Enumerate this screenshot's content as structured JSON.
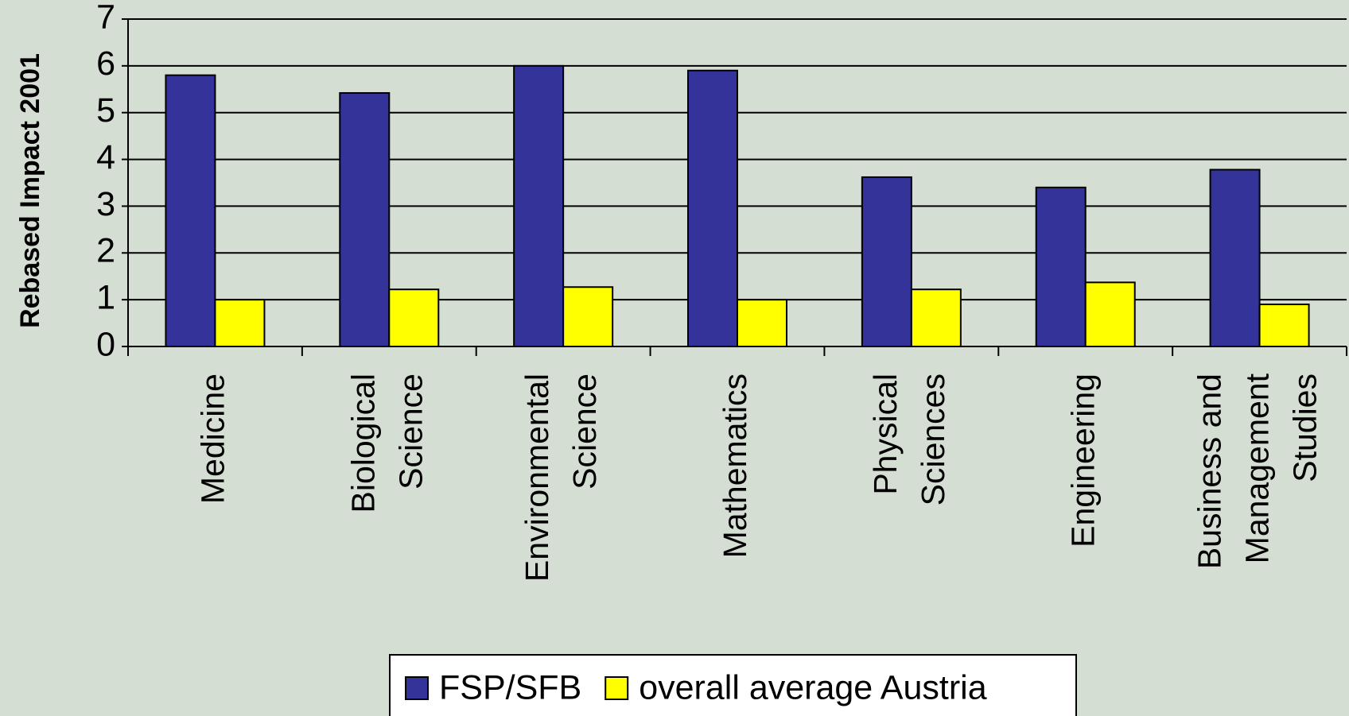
{
  "chart_data": {
    "type": "bar",
    "y_label": "Rebased Impact 2001",
    "categories": [
      "Medicine",
      "Biological\nScience",
      "Environmental\nScience",
      "Mathematics",
      "Physical\nSciences",
      "Engineering",
      "Business and\nManagement\nStudies"
    ],
    "series": [
      {
        "name": "FSP/SFB",
        "color": "#333399",
        "values": [
          5.8,
          5.42,
          6.0,
          5.9,
          3.62,
          3.4,
          3.78
        ]
      },
      {
        "name": "overall average Austria",
        "color": "#ffff00",
        "values": [
          1.0,
          1.22,
          1.27,
          1.0,
          1.22,
          1.37,
          0.9
        ]
      }
    ],
    "ylim": [
      0,
      7
    ],
    "yticks": [
      0,
      1,
      2,
      3,
      4,
      5,
      6,
      7
    ],
    "grid": true,
    "legend": "bottom"
  }
}
